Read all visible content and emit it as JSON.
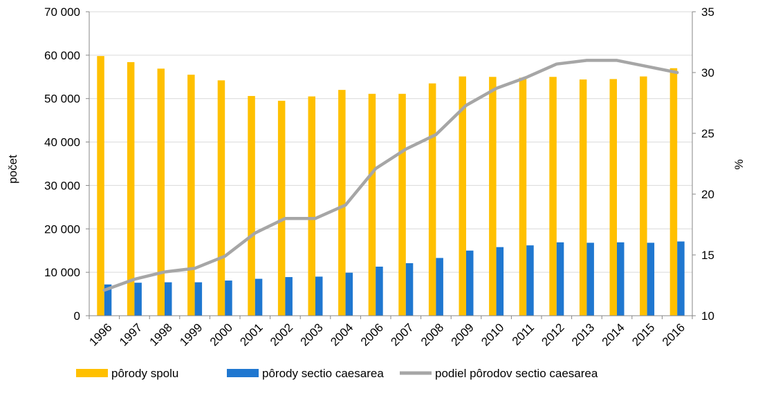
{
  "chart_data": {
    "type": "bar",
    "categories": [
      "1996",
      "1997",
      "1998",
      "1999",
      "2000",
      "2001",
      "2002",
      "2003",
      "2004",
      "2006",
      "2007",
      "2008",
      "2009",
      "2010",
      "2011",
      "2012",
      "2013",
      "2014",
      "2015",
      "2016"
    ],
    "series": [
      {
        "name": "pôrody spolu",
        "kind": "bar",
        "axis": "left",
        "color": "#FFC000",
        "values": [
          59800,
          58400,
          56900,
          55500,
          54200,
          50600,
          49500,
          50500,
          52000,
          51100,
          51100,
          53500,
          55100,
          55000,
          54800,
          55000,
          54400,
          54500,
          55100,
          57000
        ]
      },
      {
        "name": "pôrody sectio caesarea",
        "kind": "bar",
        "axis": "left",
        "color": "#1F77D0",
        "values": [
          7200,
          7600,
          7700,
          7700,
          8100,
          8500,
          8900,
          9000,
          9900,
          11300,
          12100,
          13300,
          15000,
          15800,
          16200,
          16900,
          16800,
          16900,
          16800,
          17100
        ]
      },
      {
        "name": "podiel pôrodov sectio caesarea",
        "kind": "line",
        "axis": "right",
        "color": "#A6A6A6",
        "values": [
          12.1,
          13.0,
          13.6,
          13.9,
          14.9,
          16.8,
          18.0,
          18.0,
          19.1,
          22.1,
          23.7,
          24.9,
          27.3,
          28.7,
          29.6,
          30.7,
          31.0,
          31.0,
          30.5,
          30.0
        ]
      }
    ],
    "ylabel": "počet",
    "y2label": "%",
    "ylim": [
      0,
      70000
    ],
    "y2lim": [
      10,
      35
    ],
    "yticks": [
      "0",
      "10 000",
      "20 000",
      "30 000",
      "40 000",
      "50 000",
      "60 000",
      "70 000"
    ],
    "y2ticks": [
      "10",
      "15",
      "20",
      "25",
      "30",
      "35"
    ],
    "grid": true,
    "legend_position": "bottom"
  }
}
